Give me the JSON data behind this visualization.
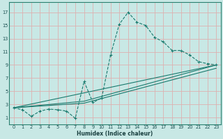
{
  "xlabel": "Humidex (Indice chaleur)",
  "bg_color": "#c8e8e5",
  "grid_color": "#ddb0b0",
  "line_color": "#1a7a6e",
  "xlim": [
    -0.5,
    23.5
  ],
  "ylim": [
    0.0,
    18.5
  ],
  "xticks": [
    0,
    1,
    2,
    3,
    4,
    5,
    6,
    7,
    8,
    9,
    10,
    11,
    12,
    13,
    14,
    15,
    16,
    17,
    18,
    19,
    20,
    21,
    22,
    23
  ],
  "yticks": [
    1,
    3,
    5,
    7,
    9,
    11,
    13,
    15,
    17
  ],
  "line1_x": [
    0,
    1,
    2,
    3,
    4,
    5,
    6,
    7,
    8,
    9,
    10,
    11,
    12,
    13,
    14,
    15,
    16,
    17,
    18,
    19,
    20,
    21,
    22,
    23
  ],
  "line1_y": [
    2.5,
    2.2,
    1.2,
    2.0,
    2.3,
    2.2,
    2.0,
    0.9,
    6.5,
    3.3,
    4.0,
    10.5,
    15.2,
    17.0,
    15.5,
    15.0,
    13.2,
    12.5,
    11.2,
    11.2,
    10.5,
    9.5,
    9.2,
    9.0
  ],
  "line2_x": [
    0,
    23
  ],
  "line2_y": [
    2.5,
    9.0
  ],
  "line3_x": [
    0,
    8,
    23
  ],
  "line3_y": [
    2.5,
    3.5,
    9.0
  ],
  "line4_x": [
    0,
    8,
    23
  ],
  "line4_y": [
    2.5,
    3.2,
    8.5
  ]
}
